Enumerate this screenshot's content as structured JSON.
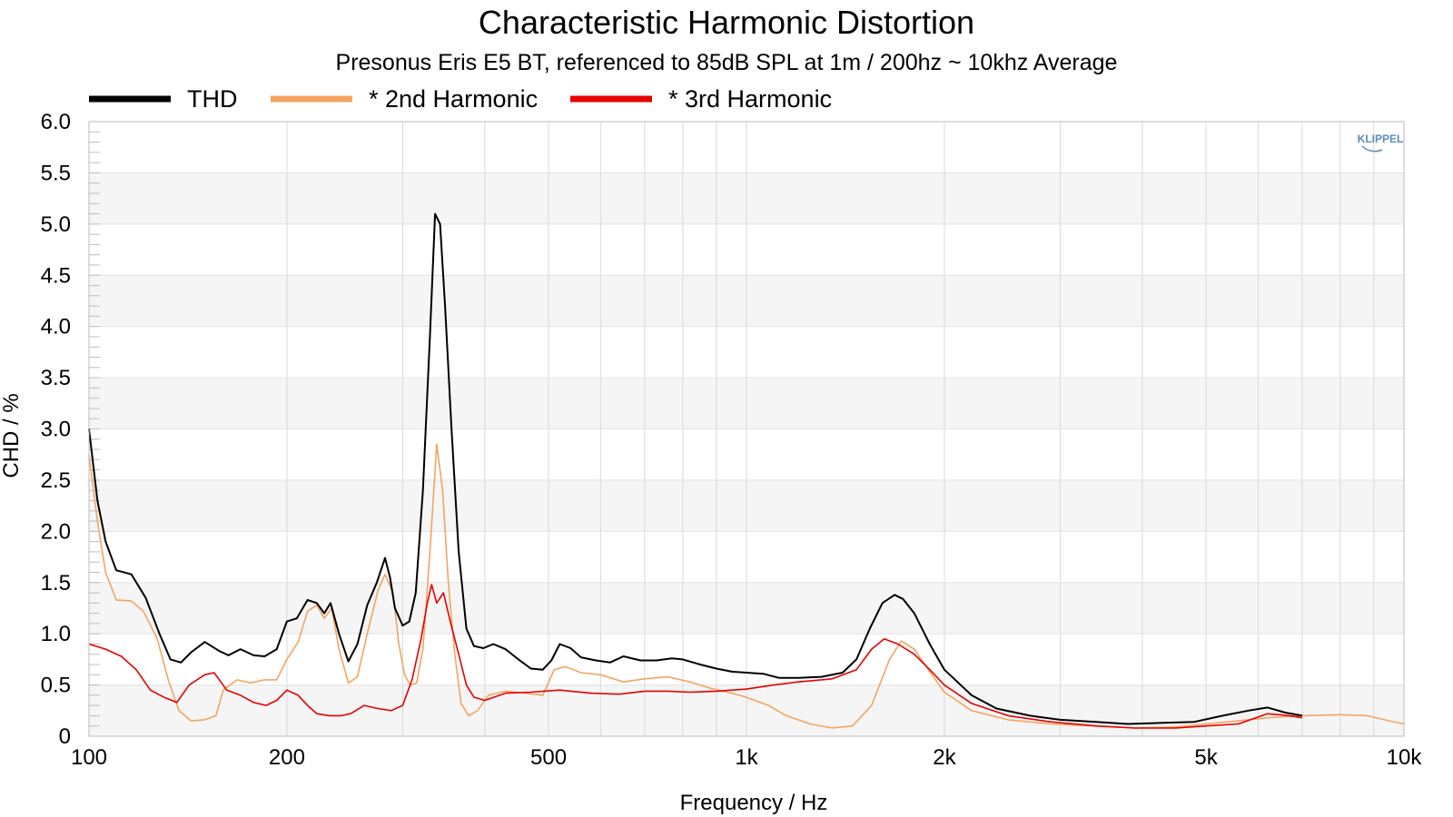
{
  "chart_data": {
    "type": "line",
    "title": "Characteristic Harmonic Distortion",
    "subtitle": "Presonus Eris E5 BT, referenced to 85dB SPL at 1m / 200hz ~ 10khz Average",
    "xlabel": "Frequency / Hz",
    "ylabel": "CHD / %",
    "xscale": "log",
    "xlim": [
      100,
      10000
    ],
    "ylim": [
      0,
      6.0
    ],
    "grid": true,
    "legend_placement": "top-left",
    "watermark": "KLIPPEL",
    "x_ticks": [
      {
        "value": 100,
        "label": "100"
      },
      {
        "value": 200,
        "label": "200"
      },
      {
        "value": 500,
        "label": "500"
      },
      {
        "value": 1000,
        "label": "1k"
      },
      {
        "value": 2000,
        "label": "2k"
      },
      {
        "value": 5000,
        "label": "5k"
      },
      {
        "value": 10000,
        "label": "10k"
      }
    ],
    "y_ticks": [
      {
        "value": 0,
        "label": "0"
      },
      {
        "value": 0.5,
        "label": "0.5"
      },
      {
        "value": 1.0,
        "label": "1.0"
      },
      {
        "value": 1.5,
        "label": "1.5"
      },
      {
        "value": 2.0,
        "label": "2.0"
      },
      {
        "value": 2.5,
        "label": "2.5"
      },
      {
        "value": 3.0,
        "label": "3.0"
      },
      {
        "value": 3.5,
        "label": "3.5"
      },
      {
        "value": 4.0,
        "label": "4.0"
      },
      {
        "value": 4.5,
        "label": "4.5"
      },
      {
        "value": 5.0,
        "label": "5.0"
      },
      {
        "value": 5.5,
        "label": "5.5"
      },
      {
        "value": 6.0,
        "label": "6.0"
      }
    ],
    "series": [
      {
        "name": "THD",
        "color": "#000000",
        "points": [
          [
            100,
            3.0
          ],
          [
            103,
            2.3
          ],
          [
            106,
            1.9
          ],
          [
            110,
            1.62
          ],
          [
            116,
            1.58
          ],
          [
            122,
            1.35
          ],
          [
            128,
            1.0
          ],
          [
            133,
            0.75
          ],
          [
            138,
            0.72
          ],
          [
            143,
            0.82
          ],
          [
            150,
            0.92
          ],
          [
            158,
            0.83
          ],
          [
            163,
            0.79
          ],
          [
            170,
            0.85
          ],
          [
            178,
            0.79
          ],
          [
            185,
            0.78
          ],
          [
            193,
            0.85
          ],
          [
            200,
            1.12
          ],
          [
            207,
            1.15
          ],
          [
            215,
            1.33
          ],
          [
            222,
            1.3
          ],
          [
            228,
            1.2
          ],
          [
            233,
            1.3
          ],
          [
            240,
            1.0
          ],
          [
            248,
            0.73
          ],
          [
            256,
            0.9
          ],
          [
            265,
            1.28
          ],
          [
            274,
            1.5
          ],
          [
            282,
            1.74
          ],
          [
            287,
            1.55
          ],
          [
            292,
            1.25
          ],
          [
            300,
            1.08
          ],
          [
            307,
            1.12
          ],
          [
            314,
            1.4
          ],
          [
            322,
            2.4
          ],
          [
            330,
            3.9
          ],
          [
            336,
            5.1
          ],
          [
            342,
            5.0
          ],
          [
            348,
            4.2
          ],
          [
            356,
            3.0
          ],
          [
            365,
            1.8
          ],
          [
            375,
            1.05
          ],
          [
            385,
            0.88
          ],
          [
            398,
            0.86
          ],
          [
            412,
            0.9
          ],
          [
            430,
            0.85
          ],
          [
            450,
            0.75
          ],
          [
            470,
            0.66
          ],
          [
            490,
            0.65
          ],
          [
            505,
            0.74
          ],
          [
            520,
            0.9
          ],
          [
            540,
            0.86
          ],
          [
            560,
            0.77
          ],
          [
            590,
            0.74
          ],
          [
            620,
            0.72
          ],
          [
            650,
            0.78
          ],
          [
            690,
            0.74
          ],
          [
            730,
            0.74
          ],
          [
            770,
            0.76
          ],
          [
            800,
            0.75
          ],
          [
            850,
            0.7
          ],
          [
            900,
            0.66
          ],
          [
            950,
            0.63
          ],
          [
            1000,
            0.62
          ],
          [
            1060,
            0.61
          ],
          [
            1120,
            0.57
          ],
          [
            1200,
            0.57
          ],
          [
            1300,
            0.58
          ],
          [
            1400,
            0.62
          ],
          [
            1470,
            0.75
          ],
          [
            1540,
            1.05
          ],
          [
            1610,
            1.3
          ],
          [
            1680,
            1.38
          ],
          [
            1730,
            1.34
          ],
          [
            1800,
            1.2
          ],
          [
            1900,
            0.9
          ],
          [
            2000,
            0.65
          ],
          [
            2200,
            0.4
          ],
          [
            2400,
            0.27
          ],
          [
            2700,
            0.2
          ],
          [
            3000,
            0.16
          ],
          [
            3400,
            0.14
          ],
          [
            3800,
            0.12
          ],
          [
            4300,
            0.13
          ],
          [
            4800,
            0.14
          ],
          [
            5300,
            0.2
          ],
          [
            5800,
            0.25
          ],
          [
            6200,
            0.28
          ],
          [
            6600,
            0.23
          ],
          [
            7000,
            0.2
          ]
        ]
      },
      {
        "name": "* 2nd Harmonic",
        "color": "#f4a460",
        "points": [
          [
            100,
            2.75
          ],
          [
            103,
            2.1
          ],
          [
            106,
            1.6
          ],
          [
            110,
            1.33
          ],
          [
            116,
            1.32
          ],
          [
            121,
            1.22
          ],
          [
            127,
            0.95
          ],
          [
            132,
            0.55
          ],
          [
            137,
            0.25
          ],
          [
            143,
            0.15
          ],
          [
            150,
            0.16
          ],
          [
            156,
            0.2
          ],
          [
            160,
            0.45
          ],
          [
            168,
            0.55
          ],
          [
            176,
            0.52
          ],
          [
            185,
            0.55
          ],
          [
            193,
            0.55
          ],
          [
            200,
            0.75
          ],
          [
            208,
            0.92
          ],
          [
            215,
            1.22
          ],
          [
            222,
            1.28
          ],
          [
            228,
            1.15
          ],
          [
            234,
            1.25
          ],
          [
            240,
            0.85
          ],
          [
            248,
            0.52
          ],
          [
            256,
            0.58
          ],
          [
            265,
            1.0
          ],
          [
            275,
            1.42
          ],
          [
            282,
            1.58
          ],
          [
            290,
            1.4
          ],
          [
            296,
            0.9
          ],
          [
            302,
            0.6
          ],
          [
            308,
            0.5
          ],
          [
            315,
            0.52
          ],
          [
            322,
            0.85
          ],
          [
            330,
            1.8
          ],
          [
            338,
            2.85
          ],
          [
            345,
            2.4
          ],
          [
            352,
            1.5
          ],
          [
            360,
            0.8
          ],
          [
            368,
            0.32
          ],
          [
            378,
            0.2
          ],
          [
            390,
            0.25
          ],
          [
            405,
            0.4
          ],
          [
            430,
            0.44
          ],
          [
            460,
            0.42
          ],
          [
            490,
            0.4
          ],
          [
            510,
            0.65
          ],
          [
            530,
            0.68
          ],
          [
            560,
            0.62
          ],
          [
            600,
            0.6
          ],
          [
            650,
            0.53
          ],
          [
            700,
            0.56
          ],
          [
            760,
            0.58
          ],
          [
            820,
            0.53
          ],
          [
            880,
            0.47
          ],
          [
            950,
            0.42
          ],
          [
            1000,
            0.38
          ],
          [
            1080,
            0.3
          ],
          [
            1150,
            0.2
          ],
          [
            1250,
            0.12
          ],
          [
            1350,
            0.08
          ],
          [
            1450,
            0.1
          ],
          [
            1550,
            0.3
          ],
          [
            1650,
            0.75
          ],
          [
            1720,
            0.93
          ],
          [
            1800,
            0.85
          ],
          [
            1900,
            0.63
          ],
          [
            2000,
            0.43
          ],
          [
            2200,
            0.25
          ],
          [
            2500,
            0.16
          ],
          [
            2900,
            0.12
          ],
          [
            3400,
            0.1
          ],
          [
            3900,
            0.08
          ],
          [
            4500,
            0.09
          ],
          [
            5000,
            0.12
          ],
          [
            5600,
            0.15
          ],
          [
            6200,
            0.18
          ],
          [
            7000,
            0.2
          ],
          [
            8000,
            0.21
          ],
          [
            8800,
            0.2
          ],
          [
            9500,
            0.15
          ],
          [
            10000,
            0.12
          ]
        ]
      },
      {
        "name": "* 3rd Harmonic",
        "color": "#e60000",
        "points": [
          [
            100,
            0.9
          ],
          [
            106,
            0.85
          ],
          [
            112,
            0.78
          ],
          [
            118,
            0.65
          ],
          [
            124,
            0.45
          ],
          [
            130,
            0.38
          ],
          [
            136,
            0.33
          ],
          [
            142,
            0.5
          ],
          [
            150,
            0.6
          ],
          [
            155,
            0.62
          ],
          [
            162,
            0.45
          ],
          [
            170,
            0.4
          ],
          [
            178,
            0.33
          ],
          [
            186,
            0.3
          ],
          [
            193,
            0.35
          ],
          [
            200,
            0.45
          ],
          [
            208,
            0.4
          ],
          [
            215,
            0.3
          ],
          [
            222,
            0.22
          ],
          [
            232,
            0.2
          ],
          [
            242,
            0.2
          ],
          [
            250,
            0.22
          ],
          [
            262,
            0.3
          ],
          [
            275,
            0.27
          ],
          [
            288,
            0.25
          ],
          [
            300,
            0.3
          ],
          [
            310,
            0.55
          ],
          [
            320,
            0.95
          ],
          [
            327,
            1.3
          ],
          [
            332,
            1.48
          ],
          [
            338,
            1.3
          ],
          [
            346,
            1.4
          ],
          [
            355,
            1.1
          ],
          [
            365,
            0.8
          ],
          [
            375,
            0.5
          ],
          [
            385,
            0.38
          ],
          [
            400,
            0.35
          ],
          [
            430,
            0.42
          ],
          [
            470,
            0.43
          ],
          [
            520,
            0.45
          ],
          [
            580,
            0.42
          ],
          [
            640,
            0.41
          ],
          [
            700,
            0.44
          ],
          [
            760,
            0.44
          ],
          [
            820,
            0.43
          ],
          [
            900,
            0.44
          ],
          [
            1000,
            0.46
          ],
          [
            1100,
            0.5
          ],
          [
            1200,
            0.53
          ],
          [
            1350,
            0.56
          ],
          [
            1470,
            0.65
          ],
          [
            1550,
            0.85
          ],
          [
            1620,
            0.95
          ],
          [
            1700,
            0.9
          ],
          [
            1800,
            0.8
          ],
          [
            1900,
            0.65
          ],
          [
            2000,
            0.5
          ],
          [
            2200,
            0.32
          ],
          [
            2500,
            0.2
          ],
          [
            2900,
            0.14
          ],
          [
            3400,
            0.1
          ],
          [
            3900,
            0.08
          ],
          [
            4500,
            0.08
          ],
          [
            5000,
            0.1
          ],
          [
            5600,
            0.12
          ],
          [
            6200,
            0.22
          ],
          [
            6700,
            0.2
          ],
          [
            7000,
            0.18
          ]
        ]
      }
    ]
  }
}
